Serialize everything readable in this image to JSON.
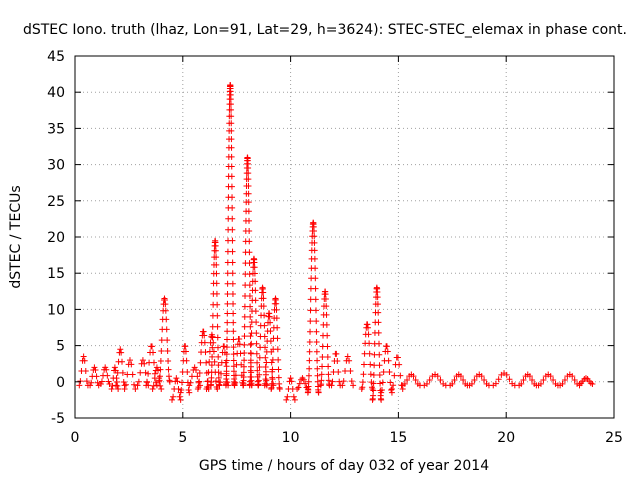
{
  "chart_data": {
    "type": "scatter",
    "title": "dSTEC Iono. truth (lhaz, Lon=91, Lat=29, h=3624): STEC-STEC_elemax in phase cont.",
    "xlabel": "GPS time / hours of day 032 of year 2014",
    "ylabel": "dSTEC  / TECUs",
    "xlim": [
      0,
      25
    ],
    "ylim": [
      -5,
      45
    ],
    "x_ticks": [
      0,
      5,
      10,
      15,
      20,
      25
    ],
    "y_ticks": [
      -5,
      0,
      5,
      10,
      15,
      20,
      25,
      30,
      35,
      40,
      45
    ],
    "x_tick_labels": [
      "0",
      "5",
      "10",
      "15",
      "20",
      "25"
    ],
    "y_tick_labels": [
      "-5",
      "0",
      "5",
      "10",
      "15",
      "20",
      "25",
      "30",
      "35",
      "40",
      "45"
    ],
    "grid": true,
    "marker": "+",
    "color": "#ff0000",
    "arcs": [
      {
        "x": [
          0.2,
          0.6
        ],
        "y": [
          -0.5,
          3.5
        ]
      },
      {
        "x": [
          0.7,
          1.1
        ],
        "y": [
          -0.5,
          2.0
        ]
      },
      {
        "x": [
          1.2,
          1.6
        ],
        "y": [
          -0.3,
          2.0
        ]
      },
      {
        "x": [
          1.7,
          2.0
        ],
        "y": [
          -1.0,
          2.0
        ]
      },
      {
        "x": [
          1.9,
          2.3
        ],
        "y": [
          -0.5,
          4.5
        ]
      },
      {
        "x": [
          2.3,
          2.8
        ],
        "y": [
          -1.0,
          3.0
        ]
      },
      {
        "x": [
          2.9,
          3.4
        ],
        "y": [
          -0.5,
          3.0
        ]
      },
      {
        "x": [
          3.3,
          3.8
        ],
        "y": [
          -0.5,
          5.0
        ]
      },
      {
        "x": [
          3.6,
          4.0
        ],
        "y": [
          -1.0,
          2.0
        ]
      },
      {
        "x": [
          3.9,
          4.4
        ],
        "y": [
          0.0,
          11.5
        ]
      },
      {
        "x": [
          4.5,
          4.9
        ],
        "y": [
          -2.5,
          0.5
        ]
      },
      {
        "x": [
          4.9,
          5.3
        ],
        "y": [
          -1.5,
          5.0
        ]
      },
      {
        "x": [
          5.3,
          5.8
        ],
        "y": [
          -0.5,
          2.0
        ]
      },
      {
        "x": [
          5.7,
          6.2
        ],
        "y": [
          -1.0,
          7.0
        ]
      },
      {
        "x": [
          6.1,
          6.6
        ],
        "y": [
          -1.0,
          6.5
        ]
      },
      {
        "x": [
          6.3,
          6.7
        ],
        "y": [
          -0.5,
          19.5
        ]
      },
      {
        "x": [
          6.7,
          7.1
        ],
        "y": [
          -0.5,
          5.0
        ]
      },
      {
        "x": [
          7.0,
          7.4
        ],
        "y": [
          -0.5,
          41.0
        ]
      },
      {
        "x": [
          7.4,
          7.8
        ],
        "y": [
          -0.5,
          6.0
        ]
      },
      {
        "x": [
          7.8,
          8.2
        ],
        "y": [
          -0.5,
          31.0
        ]
      },
      {
        "x": [
          8.1,
          8.5
        ],
        "y": [
          -0.5,
          17.0
        ]
      },
      {
        "x": [
          8.5,
          8.9
        ],
        "y": [
          -0.5,
          13.0
        ]
      },
      {
        "x": [
          8.8,
          9.2
        ],
        "y": [
          -0.5,
          9.5
        ]
      },
      {
        "x": [
          9.1,
          9.5
        ],
        "y": [
          -1.0,
          11.5
        ]
      },
      {
        "x": [
          9.8,
          10.2
        ],
        "y": [
          -2.5,
          0.5
        ]
      },
      {
        "x": [
          10.3,
          10.8
        ],
        "y": [
          -1.0,
          0.5
        ]
      },
      {
        "x": [
          10.8,
          11.3
        ],
        "y": [
          -1.5,
          22.0
        ]
      },
      {
        "x": [
          11.4,
          11.8
        ],
        "y": [
          -0.5,
          12.5
        ]
      },
      {
        "x": [
          11.9,
          12.3
        ],
        "y": [
          -0.5,
          4.0
        ]
      },
      {
        "x": [
          12.4,
          12.9
        ],
        "y": [
          -0.5,
          3.5
        ]
      },
      {
        "x": [
          13.3,
          13.8
        ],
        "y": [
          -1.0,
          8.0
        ]
      },
      {
        "x": [
          13.8,
          14.2
        ],
        "y": [
          -2.5,
          13.0
        ]
      },
      {
        "x": [
          14.2,
          14.7
        ],
        "y": [
          -1.5,
          5.0
        ]
      },
      {
        "x": [
          14.7,
          15.2
        ],
        "y": [
          -1.0,
          3.5
        ]
      },
      {
        "x": [
          15.2,
          16.0
        ],
        "y": [
          -0.5,
          1.0
        ]
      },
      {
        "x": [
          16.2,
          17.2
        ],
        "y": [
          -0.5,
          1.0
        ]
      },
      {
        "x": [
          17.4,
          18.2
        ],
        "y": [
          -0.5,
          1.0
        ]
      },
      {
        "x": [
          18.3,
          19.2
        ],
        "y": [
          -0.5,
          1.0
        ]
      },
      {
        "x": [
          19.4,
          20.4
        ],
        "y": [
          -0.5,
          1.2
        ]
      },
      {
        "x": [
          20.6,
          21.4
        ],
        "y": [
          -0.5,
          1.0
        ]
      },
      {
        "x": [
          21.5,
          22.4
        ],
        "y": [
          -0.5,
          1.0
        ]
      },
      {
        "x": [
          22.5,
          23.4
        ],
        "y": [
          -0.5,
          1.0
        ]
      },
      {
        "x": [
          23.4,
          24.0
        ],
        "y": [
          -0.3,
          0.5
        ]
      }
    ]
  }
}
